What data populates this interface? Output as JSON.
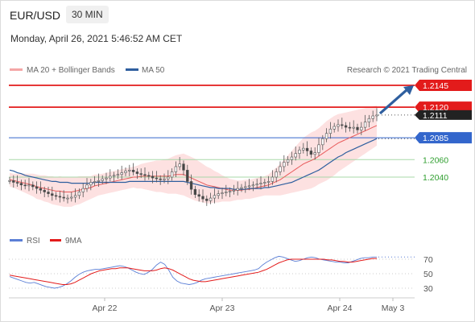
{
  "header": {
    "pair": "EUR/USD",
    "timeframe": "30 MIN",
    "date": "Monday, April 26, 2021 5:46:52 AM CET"
  },
  "legend": {
    "ma20": "MA 20 + Bollinger Bands",
    "ma50": "MA 50",
    "source": "Research © 2021 Trading Central",
    "rsi": "RSI",
    "rsi_ma": "9MA"
  },
  "colors": {
    "candle": "#555555",
    "ma20": "#e85a5a",
    "band": "#fde1e1",
    "ma50": "#2f5f9f",
    "red_level": "#e31b1b",
    "blue_level": "#3366cc",
    "green_level": "#2e9e2e",
    "arrow": "#2f5f9f",
    "price_tag": "#222222",
    "rsi": "#5b7fd6",
    "rsi_ma": "#e31b1b"
  },
  "chart_data": [
    {
      "type": "candlestick",
      "title": "",
      "x_ticks": [
        "Apr 22",
        "Apr 23",
        "Apr 24",
        "May 3"
      ],
      "ylim": [
        1.196,
        1.216
      ],
      "levels": [
        {
          "value": 1.2145,
          "label": "1.2145",
          "style": "red"
        },
        {
          "value": 1.212,
          "label": "1.2120",
          "style": "red"
        },
        {
          "value": 1.2085,
          "label": "1.2085",
          "style": "blue"
        },
        {
          "value": 1.206,
          "label": "1.2060",
          "style": "green"
        },
        {
          "value": 1.204,
          "label": "1.2040",
          "style": "green"
        }
      ],
      "last_price": "1.2111",
      "projection": "up toward 1.2145",
      "close_series": [
        1.2036,
        1.2034,
        1.2033,
        1.2031,
        1.203,
        1.2031,
        1.2029,
        1.2027,
        1.2025,
        1.2023,
        1.2021,
        1.2019,
        1.2018,
        1.2017,
        1.2016,
        1.2016,
        1.2017,
        1.2019,
        1.2023,
        1.2027,
        1.2031,
        1.2034,
        1.2035,
        1.2036,
        1.2038,
        1.2039,
        1.2041,
        1.2042,
        1.2043,
        1.2045,
        1.2047,
        1.2048,
        1.2046,
        1.2044,
        1.2043,
        1.2042,
        1.2041,
        1.2039,
        1.2038,
        1.2037,
        1.2038,
        1.204,
        1.2046,
        1.2052,
        1.2055,
        1.2048,
        1.2035,
        1.2026,
        1.202,
        1.2018,
        1.2015,
        1.2013,
        1.2016,
        1.2019,
        1.2021,
        1.2022,
        1.2023,
        1.2024,
        1.2025,
        1.2027,
        1.2028,
        1.2029,
        1.203,
        1.2031,
        1.2032,
        1.2033,
        1.2034,
        1.2035,
        1.204,
        1.2046,
        1.2052,
        1.2057,
        1.206,
        1.2063,
        1.2067,
        1.2071,
        1.2073,
        1.207,
        1.2066,
        1.2068,
        1.2077,
        1.2084,
        1.209,
        1.2095,
        1.2098,
        1.21,
        1.2099,
        1.2097,
        1.2096,
        1.2097,
        1.2094,
        1.2097,
        1.2103,
        1.2107,
        1.211,
        1.2111
      ],
      "ma20_series": [
        1.2037,
        1.2036,
        1.2035,
        1.2034,
        1.2033,
        1.2032,
        1.2031,
        1.2029,
        1.2028,
        1.2027,
        1.2026,
        1.2025,
        1.2024,
        1.2024,
        1.2023,
        1.2023,
        1.2023,
        1.2024,
        1.2025,
        1.2026,
        1.2027,
        1.2028,
        1.203,
        1.2031,
        1.2032,
        1.2033,
        1.2034,
        1.2035,
        1.2036,
        1.2037,
        1.2038,
        1.2039,
        1.204,
        1.204,
        1.2041,
        1.2041,
        1.2041,
        1.2041,
        1.2041,
        1.2041,
        1.2041,
        1.2041,
        1.2042,
        1.2043,
        1.2043,
        1.2043,
        1.2041,
        1.2039,
        1.2037,
        1.2035,
        1.2033,
        1.2031,
        1.203,
        1.2029,
        1.2028,
        1.2027,
        1.2026,
        1.2025,
        1.2025,
        1.2025,
        1.2025,
        1.2026,
        1.2026,
        1.2027,
        1.2028,
        1.2029,
        1.203,
        1.2031,
        1.2033,
        1.2035,
        1.2037,
        1.204,
        1.2043,
        1.2046,
        1.2049,
        1.2052,
        1.2055,
        1.2057,
        1.2059,
        1.2061,
        1.2064,
        1.2067,
        1.207,
        1.2073,
        1.2076,
        1.2079,
        1.2081,
        1.2083,
        1.2085,
        1.2087,
        1.2089,
        1.2091,
        1.2093,
        1.2095,
        1.2097,
        1.2099
      ],
      "ma50_series": [
        1.2048,
        1.2047,
        1.2045,
        1.2044,
        1.2042,
        1.2041,
        1.204,
        1.2039,
        1.2038,
        1.2037,
        1.2036,
        1.2035,
        1.2035,
        1.2034,
        1.2034,
        1.2034,
        1.2033,
        1.2033,
        1.2033,
        1.2033,
        1.2033,
        1.2033,
        1.2034,
        1.2034,
        1.2034,
        1.2034,
        1.2034,
        1.2034,
        1.2034,
        1.2034,
        1.2034,
        1.2035,
        1.2035,
        1.2035,
        1.2035,
        1.2035,
        1.2035,
        1.2035,
        1.2035,
        1.2035,
        1.2035,
        1.2035,
        1.2035,
        1.2035,
        1.2035,
        1.2035,
        1.2034,
        1.2033,
        1.2032,
        1.2031,
        1.203,
        1.2029,
        1.2028,
        1.2028,
        1.2027,
        1.2027,
        1.2027,
        1.2027,
        1.2026,
        1.2026,
        1.2026,
        1.2026,
        1.2027,
        1.2027,
        1.2027,
        1.2027,
        1.2028,
        1.2028,
        1.2029,
        1.203,
        1.2031,
        1.2032,
        1.2033,
        1.2034,
        1.2036,
        1.2038,
        1.204,
        1.2042,
        1.2044,
        1.2046,
        1.2048,
        1.2051,
        1.2054,
        1.2057,
        1.206,
        1.2063,
        1.2065,
        1.2068,
        1.207,
        1.2072,
        1.2074,
        1.2076,
        1.2078,
        1.208,
        1.2082,
        1.2084
      ],
      "bb_width_series": [
        0.0008,
        0.0008,
        0.0009,
        0.001,
        0.0011,
        0.0012,
        0.0013,
        0.0014,
        0.0014,
        0.0015,
        0.0015,
        0.0016,
        0.0016,
        0.0017,
        0.0017,
        0.0017,
        0.0017,
        0.0016,
        0.0016,
        0.0015,
        0.0014,
        0.0013,
        0.0013,
        0.0012,
        0.0012,
        0.0012,
        0.0012,
        0.0012,
        0.0012,
        0.0012,
        0.0012,
        0.0012,
        0.0012,
        0.0013,
        0.0014,
        0.0015,
        0.0016,
        0.0017,
        0.0018,
        0.0018,
        0.0019,
        0.002,
        0.0021,
        0.0022,
        0.0023,
        0.0024,
        0.0024,
        0.0024,
        0.0024,
        0.0023,
        0.0022,
        0.0021,
        0.002,
        0.0018,
        0.0017,
        0.0015,
        0.0014,
        0.0013,
        0.0012,
        0.0011,
        0.0011,
        0.0011,
        0.0011,
        0.0011,
        0.0011,
        0.0011,
        0.0011,
        0.0012,
        0.0014,
        0.0016,
        0.0018,
        0.002,
        0.0022,
        0.0024,
        0.0026,
        0.0028,
        0.003,
        0.0031,
        0.0032,
        0.0032,
        0.0032,
        0.0033,
        0.0034,
        0.0034,
        0.0034,
        0.0033,
        0.0032,
        0.0031,
        0.003,
        0.0029,
        0.0028,
        0.0027,
        0.0026,
        0.0025,
        0.0024,
        0.0023
      ]
    },
    {
      "type": "line",
      "title": "",
      "y_ticks": [
        70,
        50,
        30
      ],
      "ylim": [
        20,
        80
      ],
      "series": [
        {
          "name": "RSI",
          "values": [
            46,
            44,
            42,
            40,
            38,
            37,
            38,
            36,
            34,
            32,
            31,
            30,
            31,
            33,
            36,
            40,
            45,
            49,
            52,
            54,
            55,
            56,
            56,
            57,
            58,
            59,
            60,
            61,
            60,
            58,
            55,
            52,
            50,
            49,
            52,
            56,
            62,
            66,
            63,
            55,
            45,
            40,
            37,
            36,
            35,
            36,
            38,
            41,
            43,
            44,
            45,
            46,
            47,
            48,
            49,
            50,
            51,
            52,
            53,
            54,
            55,
            57,
            62,
            66,
            69,
            72,
            74,
            73,
            71,
            69,
            67,
            68,
            70,
            72,
            73,
            72,
            70,
            69,
            68,
            67,
            66,
            66,
            65,
            65,
            67,
            69,
            71,
            72,
            72,
            73,
            73
          ]
        },
        {
          "name": "9MA",
          "values": [
            48,
            47,
            46,
            45,
            44,
            43,
            42,
            41,
            40,
            39,
            38,
            37,
            36,
            35,
            35,
            36,
            38,
            41,
            44,
            47,
            50,
            52,
            54,
            55,
            56,
            57,
            57,
            58,
            58,
            58,
            57,
            56,
            55,
            54,
            54,
            54,
            55,
            57,
            58,
            57,
            55,
            52,
            49,
            46,
            43,
            41,
            40,
            39,
            39,
            40,
            41,
            42,
            43,
            44,
            45,
            46,
            47,
            48,
            49,
            50,
            51,
            52,
            54,
            56,
            59,
            62,
            65,
            67,
            69,
            70,
            70,
            70,
            70,
            70,
            70,
            70,
            70,
            70,
            69,
            69,
            68,
            67,
            67,
            66,
            66,
            67,
            68,
            69,
            70,
            71,
            71
          ]
        }
      ]
    }
  ]
}
